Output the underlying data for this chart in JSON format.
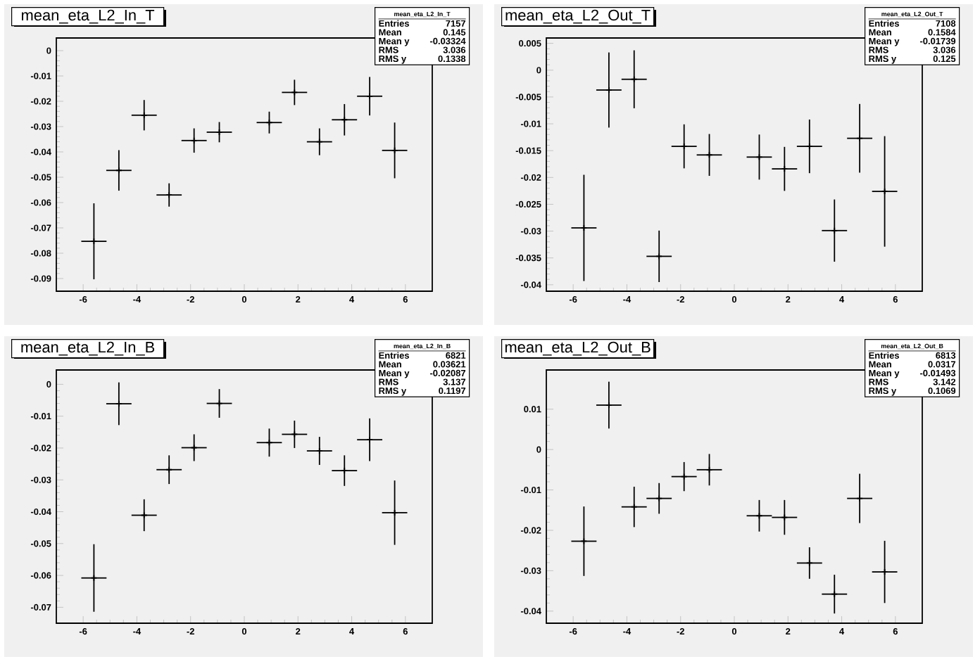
{
  "chart_data": [
    {
      "type": "scatter",
      "title": "mean_eta_L2_In_T",
      "color": "#000000",
      "marker": "cross",
      "x": [
        -5.6,
        -4.67,
        -3.73,
        -2.8,
        -1.87,
        -0.93,
        0.93,
        1.87,
        2.8,
        3.73,
        4.67,
        5.6
      ],
      "values": [
        -0.0753,
        -0.0473,
        -0.0255,
        -0.057,
        -0.0355,
        -0.0322,
        -0.0284,
        -0.0165,
        -0.036,
        -0.0273,
        -0.018,
        -0.0394
      ],
      "errors": [
        0.015,
        0.008,
        0.006,
        0.0046,
        0.0048,
        0.004,
        0.0043,
        0.005,
        0.0053,
        0.0062,
        0.0076,
        0.011
      ],
      "xerrors": [
        0.47,
        0.47,
        0.47,
        0.47,
        0.47,
        0.47,
        0.47,
        0.47,
        0.47,
        0.47,
        0.47,
        0.47
      ],
      "xlim": [
        -7,
        7
      ],
      "ylim": [
        -0.095,
        0.005
      ],
      "xticks": [
        -6,
        -4,
        -2,
        0,
        2,
        4,
        6
      ],
      "yticks": [
        -0.09,
        -0.08,
        -0.07,
        -0.06,
        -0.05,
        -0.04,
        -0.03,
        -0.02,
        -0.01,
        0
      ],
      "annotations": [
        "mean_eta_L2_In_T",
        "Entries",
        "7157",
        "Mean",
        "0.145",
        "Mean y",
        "-0.03324",
        "RMS",
        "3.036",
        "RMS y",
        "0.1338"
      ]
    },
    {
      "type": "scatter",
      "title": "mean_eta_L2_Out_T",
      "color": "#000000",
      "marker": "cross",
      "x": [
        -5.6,
        -4.67,
        -3.73,
        -2.8,
        -1.87,
        -0.93,
        0.93,
        1.87,
        2.8,
        3.73,
        4.67,
        5.6
      ],
      "values": [
        -0.0294,
        -0.0037,
        -0.0017,
        -0.0347,
        -0.0142,
        -0.0158,
        -0.0162,
        -0.0184,
        -0.0142,
        -0.0299,
        -0.0127,
        -0.0226
      ],
      "errors": [
        0.0099,
        0.007,
        0.0054,
        0.0048,
        0.0041,
        0.0039,
        0.0042,
        0.0041,
        0.005,
        0.0058,
        0.0064,
        0.0103
      ],
      "xerrors": [
        0.47,
        0.47,
        0.47,
        0.47,
        0.47,
        0.47,
        0.47,
        0.47,
        0.47,
        0.47,
        0.47,
        0.47
      ],
      "xlim": [
        -7,
        7
      ],
      "ylim": [
        -0.0412,
        0.006
      ],
      "xticks": [
        -6,
        -4,
        -2,
        0,
        2,
        4,
        6
      ],
      "yticks": [
        -0.04,
        -0.035,
        -0.03,
        -0.025,
        -0.02,
        -0.015,
        -0.01,
        -0.005,
        0,
        0.005
      ],
      "annotations": [
        "mean_eta_L2_Out_T",
        "Entries",
        "7108",
        "Mean",
        "0.1584",
        "Mean y",
        "-0.01739",
        "RMS",
        "3.036",
        "RMS y",
        "0.125"
      ]
    },
    {
      "type": "scatter",
      "title": "mean_eta_L2_In_B",
      "color": "#000000",
      "marker": "cross",
      "x": [
        -5.6,
        -4.67,
        -3.73,
        -2.8,
        -1.87,
        -0.93,
        0.93,
        1.87,
        2.8,
        3.73,
        4.67,
        5.6
      ],
      "values": [
        -0.0608,
        -0.0061,
        -0.0411,
        -0.0268,
        -0.0199,
        -0.006,
        -0.0183,
        -0.0157,
        -0.0209,
        -0.0271,
        -0.0174,
        -0.0403
      ],
      "errors": [
        0.0106,
        0.0067,
        0.005,
        0.0045,
        0.0042,
        0.0045,
        0.0044,
        0.0043,
        0.0044,
        0.0048,
        0.0067,
        0.0101
      ],
      "xerrors": [
        0.47,
        0.47,
        0.47,
        0.47,
        0.47,
        0.47,
        0.47,
        0.47,
        0.47,
        0.47,
        0.47,
        0.47
      ],
      "xlim": [
        -7,
        7
      ],
      "ylim": [
        -0.075,
        0.0045
      ],
      "xticks": [
        -6,
        -4,
        -2,
        0,
        2,
        4,
        6
      ],
      "yticks": [
        -0.07,
        -0.06,
        -0.05,
        -0.04,
        -0.03,
        -0.02,
        -0.01,
        0
      ],
      "annotations": [
        "mean_eta_L2_In_B",
        "Entries",
        "6821",
        "Mean",
        "0.03621",
        "Mean y",
        "-0.02087",
        "RMS",
        "3.137",
        "RMS y",
        "0.1197"
      ]
    },
    {
      "type": "scatter",
      "title": "mean_eta_L2_Out_B",
      "color": "#000000",
      "marker": "cross",
      "x": [
        -5.6,
        -4.67,
        -3.73,
        -2.8,
        -1.87,
        -0.93,
        0.93,
        1.87,
        2.8,
        3.73,
        4.67,
        5.6
      ],
      "values": [
        -0.0227,
        0.011,
        -0.0142,
        -0.0121,
        -0.0067,
        -0.005,
        -0.0164,
        -0.0168,
        -0.0281,
        -0.0358,
        -0.0121,
        -0.0303
      ],
      "errors": [
        0.0086,
        0.0058,
        0.005,
        0.0038,
        0.0036,
        0.0039,
        0.0039,
        0.0043,
        0.0039,
        0.0048,
        0.0061,
        0.0077
      ],
      "xerrors": [
        0.47,
        0.47,
        0.47,
        0.47,
        0.47,
        0.47,
        0.47,
        0.47,
        0.47,
        0.47,
        0.47,
        0.47
      ],
      "xlim": [
        -7,
        7
      ],
      "ylim": [
        -0.043,
        0.0197
      ],
      "xticks": [
        -6,
        -4,
        -2,
        0,
        2,
        4,
        6
      ],
      "yticks": [
        -0.04,
        -0.03,
        -0.02,
        -0.01,
        0,
        0.01
      ],
      "annotations": [
        "mean_eta_L2_Out_B",
        "Entries",
        "6813",
        "Mean",
        "0.0317",
        "Mean y",
        "-0.01493",
        "RMS",
        "3.142",
        "RMS y",
        "0.1069"
      ]
    }
  ]
}
